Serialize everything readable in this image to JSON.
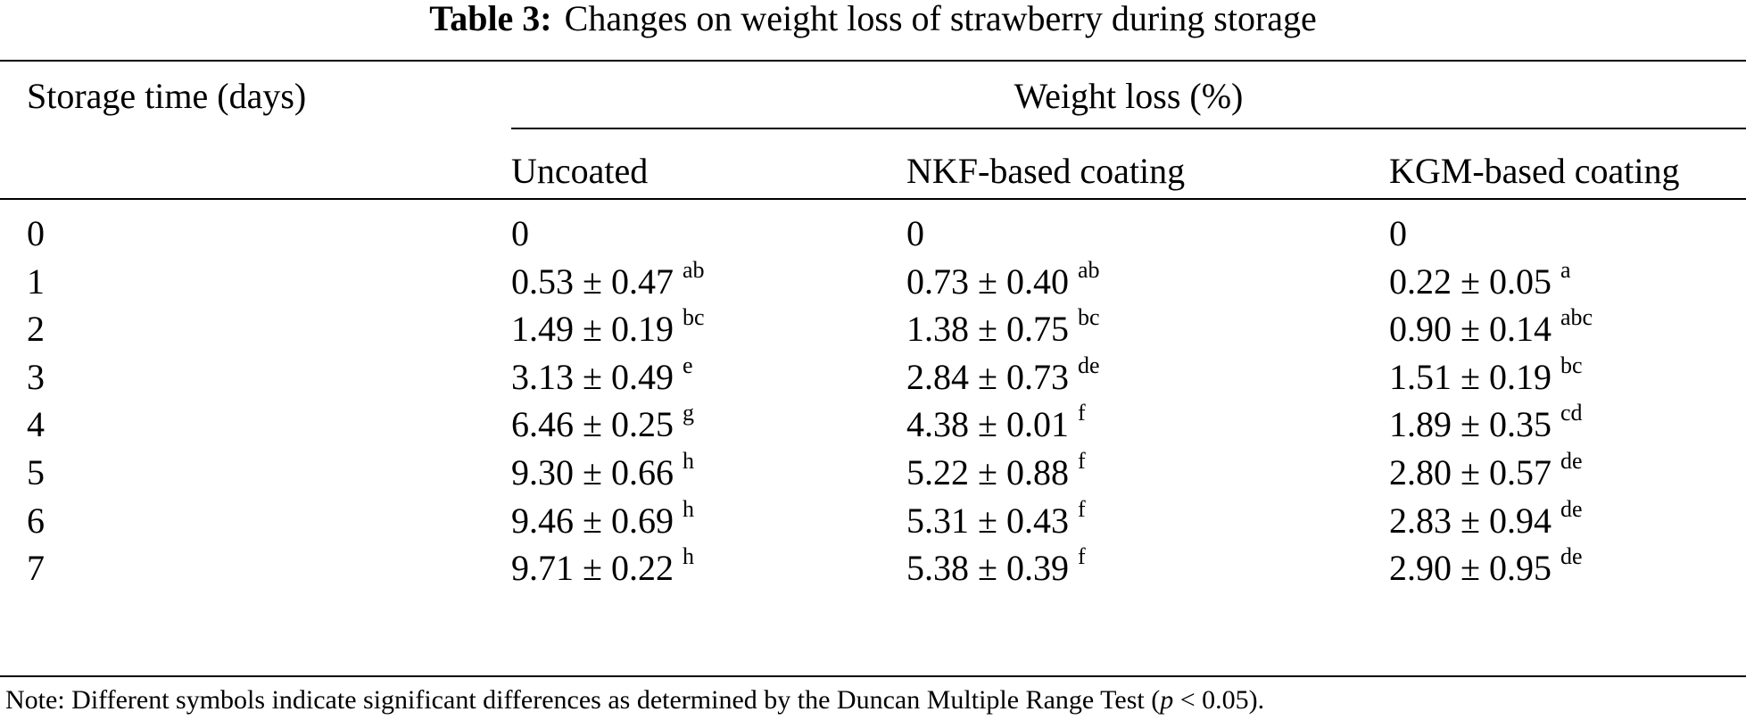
{
  "caption": {
    "label": "Table 3:",
    "title": "Changes on weight loss of strawberry during storage"
  },
  "table": {
    "row_header": "Storage time (days)",
    "group_header": "Weight loss (%)",
    "columns": [
      "Uncoated",
      "NKF-based coating",
      "KGM-based coating"
    ],
    "rows": [
      {
        "day": "0",
        "cells": [
          {
            "value": "0",
            "sig": ""
          },
          {
            "value": "0",
            "sig": ""
          },
          {
            "value": "0",
            "sig": ""
          }
        ]
      },
      {
        "day": "1",
        "cells": [
          {
            "value": "0.53 ± 0.47",
            "sig": "ab"
          },
          {
            "value": "0.73 ± 0.40",
            "sig": "ab"
          },
          {
            "value": "0.22 ± 0.05",
            "sig": "a"
          }
        ]
      },
      {
        "day": "2",
        "cells": [
          {
            "value": "1.49 ± 0.19",
            "sig": "bc"
          },
          {
            "value": "1.38 ± 0.75",
            "sig": "bc"
          },
          {
            "value": "0.90 ± 0.14",
            "sig": "abc"
          }
        ]
      },
      {
        "day": "3",
        "cells": [
          {
            "value": "3.13 ± 0.49",
            "sig": "e"
          },
          {
            "value": "2.84 ± 0.73",
            "sig": "de"
          },
          {
            "value": "1.51 ± 0.19",
            "sig": "bc"
          }
        ]
      },
      {
        "day": "4",
        "cells": [
          {
            "value": "6.46 ± 0.25",
            "sig": "g"
          },
          {
            "value": "4.38 ± 0.01",
            "sig": "f"
          },
          {
            "value": "1.89 ± 0.35",
            "sig": "cd"
          }
        ]
      },
      {
        "day": "5",
        "cells": [
          {
            "value": "9.30 ± 0.66",
            "sig": "h"
          },
          {
            "value": "5.22 ± 0.88",
            "sig": "f"
          },
          {
            "value": "2.80 ± 0.57",
            "sig": "de"
          }
        ]
      },
      {
        "day": "6",
        "cells": [
          {
            "value": "9.46 ± 0.69",
            "sig": "h"
          },
          {
            "value": "5.31 ± 0.43",
            "sig": "f"
          },
          {
            "value": "2.83 ± 0.94",
            "sig": "de"
          }
        ]
      },
      {
        "day": "7",
        "cells": [
          {
            "value": "9.71 ± 0.22",
            "sig": "h"
          },
          {
            "value": "5.38 ± 0.39",
            "sig": "f"
          },
          {
            "value": "2.90 ± 0.95",
            "sig": "de"
          }
        ]
      }
    ]
  },
  "note": {
    "prefix": "Note: Different symbols indicate significant differences as determined by the Duncan Multiple Range Test (",
    "p_symbol": "p",
    "suffix": " < 0.05)."
  }
}
